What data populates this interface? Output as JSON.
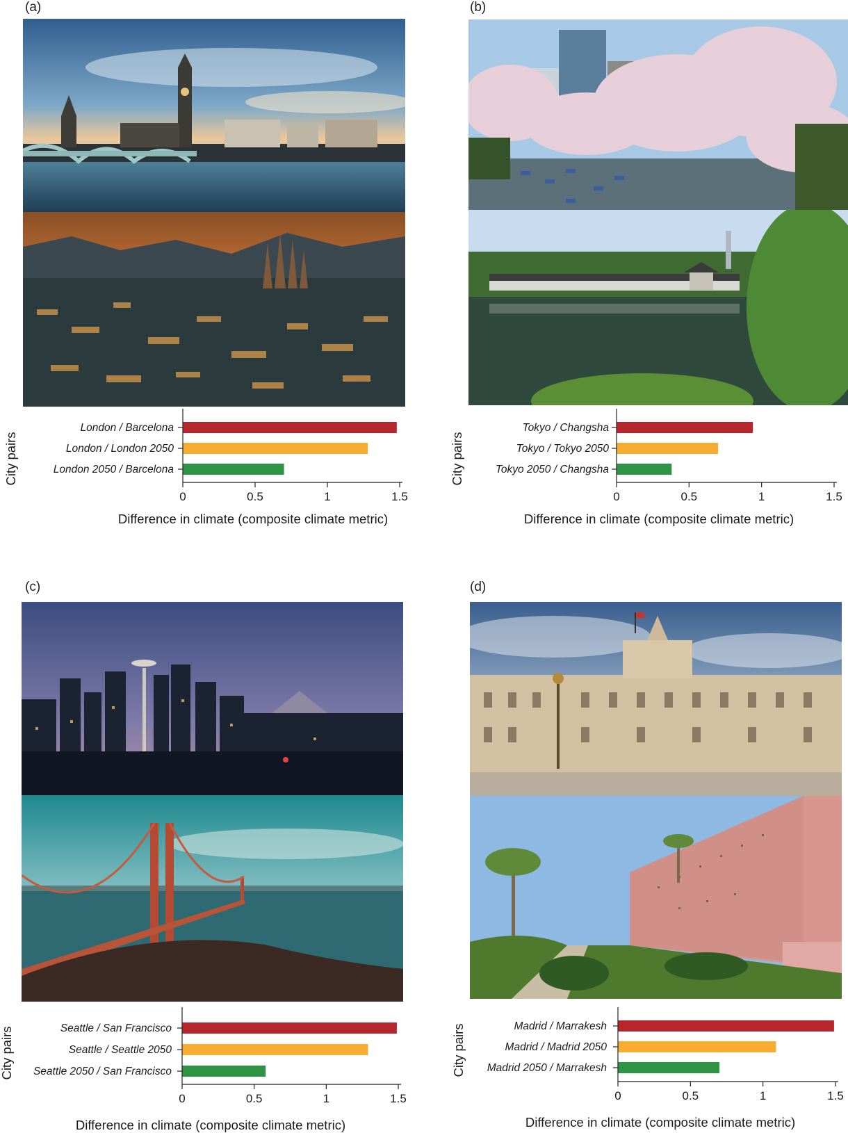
{
  "colors": {
    "series_1": "#b5272d",
    "series_2": "#f6ad32",
    "series_3": "#2e9444",
    "axis": "#222222"
  },
  "panels": [
    {
      "label": "(a)",
      "photos": [
        "london-westminster-photo",
        "barcelona-cityscape-photo"
      ],
      "chart_data": {
        "type": "bar",
        "orientation": "horizontal",
        "categories": [
          "London / Barcelona",
          "London / London 2050",
          "London 2050 / Barcelona"
        ],
        "values": [
          1.48,
          1.28,
          0.7
        ],
        "colors": [
          "#b5272d",
          "#f6ad32",
          "#2e9444"
        ],
        "xlabel": "Difference in climate (composite climate metric)",
        "ylabel": "City pairs",
        "xlim": [
          0,
          1.5
        ],
        "xticks": [
          "0",
          "0.5",
          "1",
          "1.5"
        ],
        "grid": false,
        "legend": "none"
      }
    },
    {
      "label": "(b)",
      "photos": [
        "tokyo-cherry-blossom-photo",
        "changsha-pavilion-lake-photo"
      ],
      "chart_data": {
        "type": "bar",
        "orientation": "horizontal",
        "categories": [
          "Tokyo / Changsha",
          "Tokyo / Tokyo 2050",
          "Tokyo 2050 / Changsha"
        ],
        "values": [
          0.94,
          0.7,
          0.38
        ],
        "colors": [
          "#b5272d",
          "#f6ad32",
          "#2e9444"
        ],
        "xlabel": "Difference in climate (composite climate metric)",
        "ylabel": "City pairs",
        "xlim": [
          0,
          1.5
        ],
        "xticks": [
          "0",
          "0.5",
          "1",
          "1.5"
        ],
        "grid": false,
        "legend": "none"
      }
    },
    {
      "label": "(c)",
      "photos": [
        "seattle-skyline-dusk-photo",
        "golden-gate-bridge-photo"
      ],
      "chart_data": {
        "type": "bar",
        "orientation": "horizontal",
        "categories": [
          "Seattle / San Francisco",
          "Seattle / Seattle 2050",
          "Seattle 2050 / San Francisco"
        ],
        "values": [
          1.49,
          1.29,
          0.58
        ],
        "colors": [
          "#b5272d",
          "#f6ad32",
          "#2e9444"
        ],
        "xlabel": "Difference in climate (composite climate metric)",
        "ylabel": "City pairs",
        "xlim": [
          0,
          1.5
        ],
        "xticks": [
          "0",
          "0.5",
          "1",
          "1.5"
        ],
        "grid": false,
        "legend": "none"
      }
    },
    {
      "label": "(d)",
      "photos": [
        "madrid-royal-palace-photo",
        "marrakesh-city-wall-photo"
      ],
      "chart_data": {
        "type": "bar",
        "orientation": "horizontal",
        "categories": [
          "Madrid / Marrakesh",
          "Madrid / Madrid 2050",
          "Madrid 2050 / Marrakesh"
        ],
        "values": [
          1.49,
          1.09,
          0.7
        ],
        "colors": [
          "#b5272d",
          "#f6ad32",
          "#2e9444"
        ],
        "xlabel": "Difference in climate (composite climate metric)",
        "ylabel": "City pairs",
        "xlim": [
          0,
          1.5
        ],
        "xticks": [
          "0",
          "0.5",
          "1",
          "1.5"
        ],
        "grid": false,
        "legend": "none"
      }
    }
  ]
}
